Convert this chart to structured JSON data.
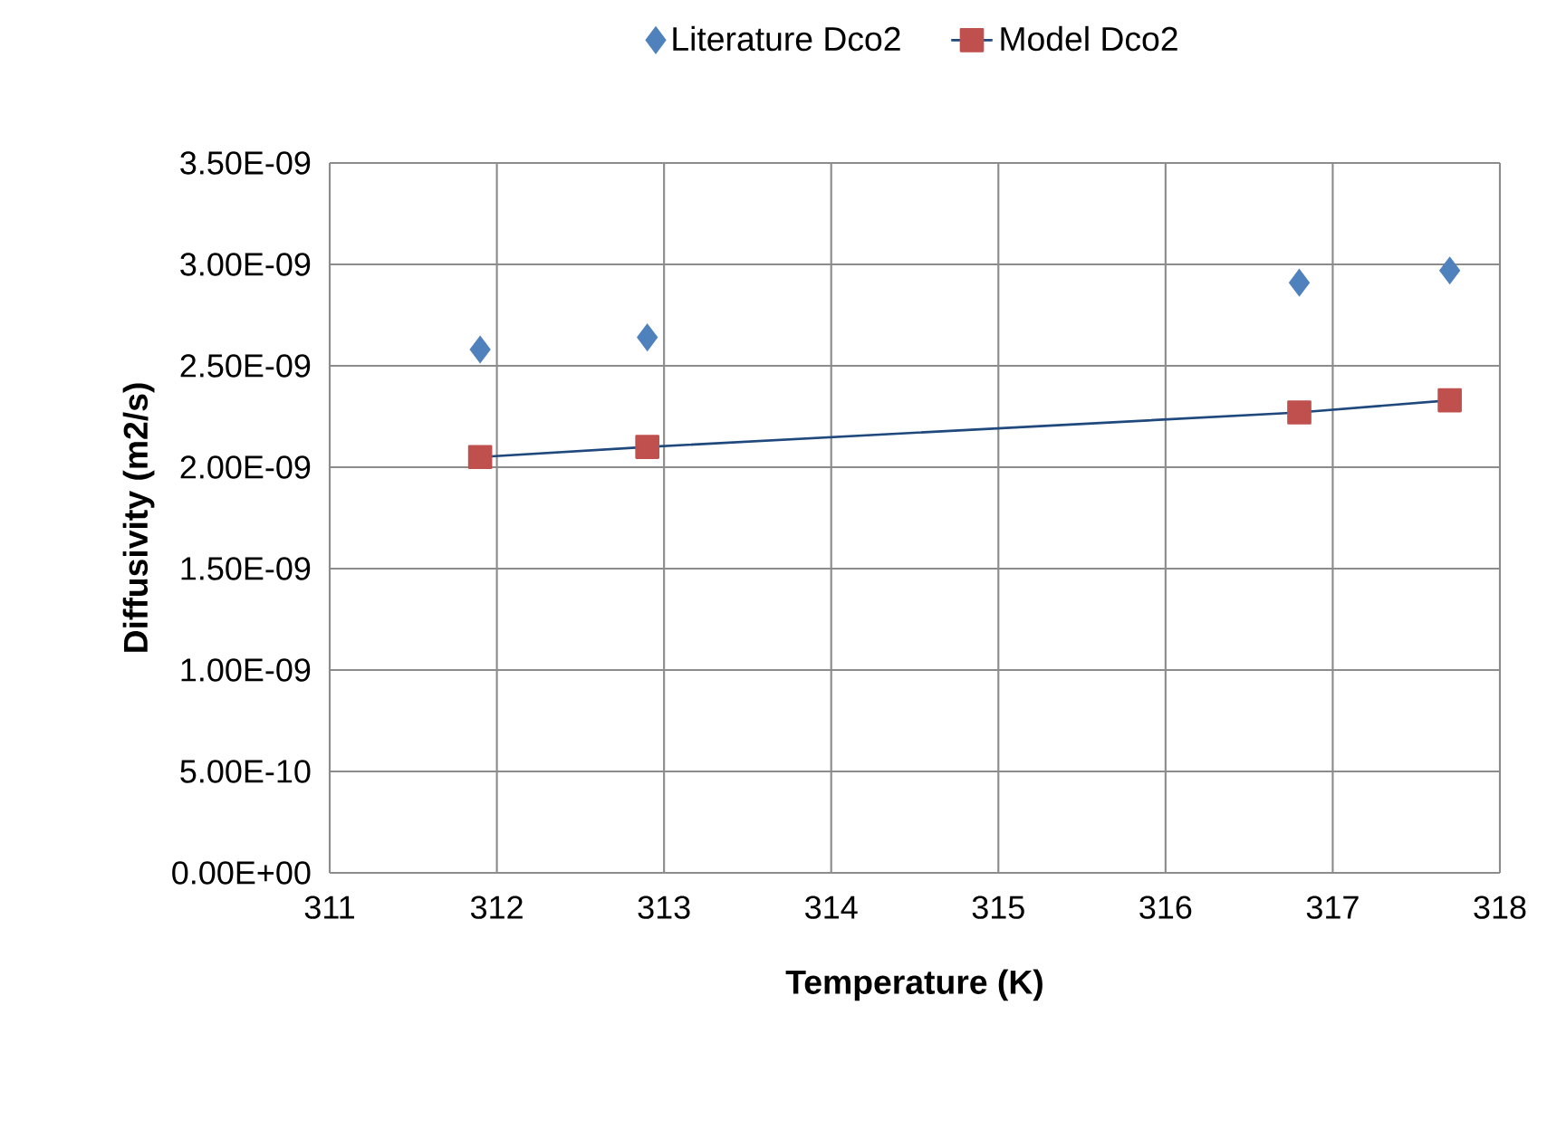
{
  "chart_data": {
    "type": "scatter",
    "xlabel": "Temperature (K)",
    "ylabel": "Diffusivity (m2/s)",
    "xlim": [
      311,
      318
    ],
    "xticks": [
      311,
      312,
      313,
      314,
      315,
      316,
      317,
      318
    ],
    "ylim": [
      0,
      3.5e-09
    ],
    "yticks": [
      {
        "value": 0,
        "label": "0.00E+00"
      },
      {
        "value": 5e-10,
        "label": "5.00E-10"
      },
      {
        "value": 1e-09,
        "label": "1.00E-09"
      },
      {
        "value": 1.5e-09,
        "label": "1.50E-09"
      },
      {
        "value": 2e-09,
        "label": "2.00E-09"
      },
      {
        "value": 2.5e-09,
        "label": "2.50E-09"
      },
      {
        "value": 3e-09,
        "label": "3.00E-09"
      },
      {
        "value": 3.5e-09,
        "label": "3.50E-09"
      }
    ],
    "grid": true,
    "legend": "top",
    "series": [
      {
        "name": "Literature Dco2",
        "marker": "diamond",
        "color": "#4f81bd",
        "x": [
          311.9,
          312.9,
          316.8,
          317.7
        ],
        "values": [
          2.58e-09,
          2.64e-09,
          2.91e-09,
          2.97e-09
        ]
      },
      {
        "name": "Model Dco2",
        "type": "line",
        "marker": "square",
        "color": "#c0504d",
        "x": [
          311.9,
          312.9,
          316.8,
          317.7
        ],
        "values": [
          2.05e-09,
          2.1e-09,
          2.27e-09,
          2.33e-09
        ]
      }
    ]
  }
}
